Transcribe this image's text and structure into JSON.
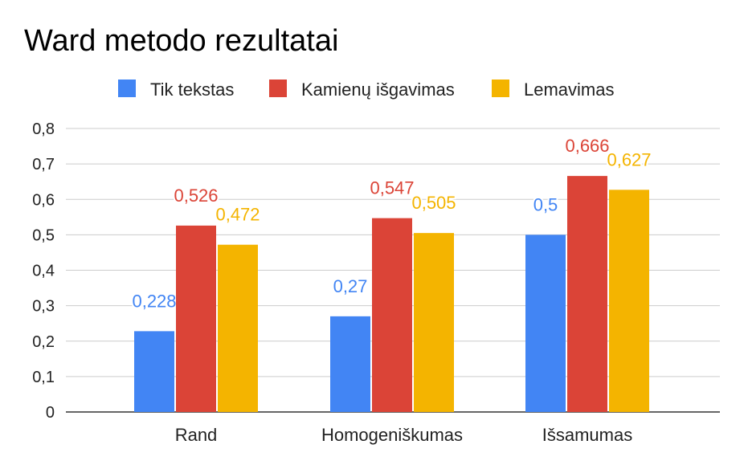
{
  "chart_data": {
    "type": "bar",
    "title": "Ward metodo rezultatai",
    "categories": [
      "Rand",
      "Homogeniškumas",
      "Išsamumas"
    ],
    "series": [
      {
        "name": "Tik tekstas",
        "color": "#4285F4",
        "values": [
          0.228,
          0.27,
          0.5
        ],
        "labels": [
          "0,228",
          "0,27",
          "0,5"
        ]
      },
      {
        "name": "Kamienų išgavimas",
        "color": "#DB4437",
        "values": [
          0.526,
          0.547,
          0.666
        ],
        "labels": [
          "0,526",
          "0,547",
          "0,666"
        ]
      },
      {
        "name": "Lemavimas",
        "color": "#F4B400",
        "values": [
          0.472,
          0.505,
          0.627
        ],
        "labels": [
          "0,472",
          "0,505",
          "0,627"
        ]
      }
    ],
    "ylim": [
      0,
      0.8
    ],
    "yticks": [
      0,
      0.1,
      0.2,
      0.3,
      0.4,
      0.5,
      0.6,
      0.7,
      0.8
    ],
    "ytick_labels": [
      "0",
      "0,1",
      "0,2",
      "0,3",
      "0,4",
      "0,5",
      "0,6",
      "0,7",
      "0,8"
    ],
    "legend_position": "top",
    "grid": true,
    "xlabel": "",
    "ylabel": ""
  }
}
